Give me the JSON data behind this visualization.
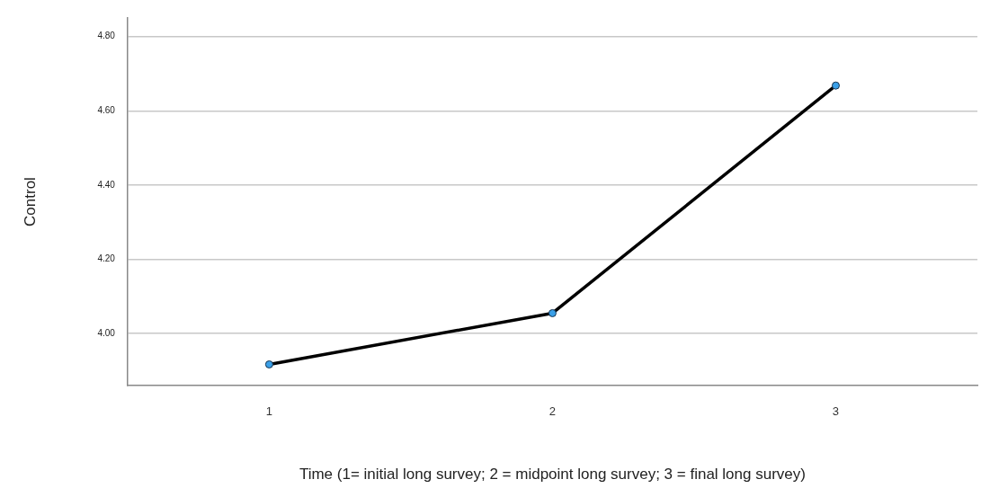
{
  "chart_data": {
    "type": "line",
    "xlabel": "Time (1= initial long survey; 2 = midpoint long survey; 3 = final long survey)",
    "ylabel": "Control",
    "categories": [
      "1",
      "2",
      "3"
    ],
    "series": [
      {
        "color": "#000000",
        "values": [
          3.917,
          4.055,
          4.668
        ]
      }
    ],
    "ylim": [
      3.86,
      4.85
    ],
    "yticks": [
      {
        "value": 4.0,
        "label": "4.00"
      },
      {
        "value": 4.2,
        "label": "4.20"
      },
      {
        "value": 4.4,
        "label": "4.40"
      },
      {
        "value": 4.6,
        "label": "4.60"
      },
      {
        "value": 4.8,
        "label": "4.80"
      }
    ],
    "grid": "y",
    "legend": false,
    "marker": "circle",
    "line_style": "solid"
  }
}
